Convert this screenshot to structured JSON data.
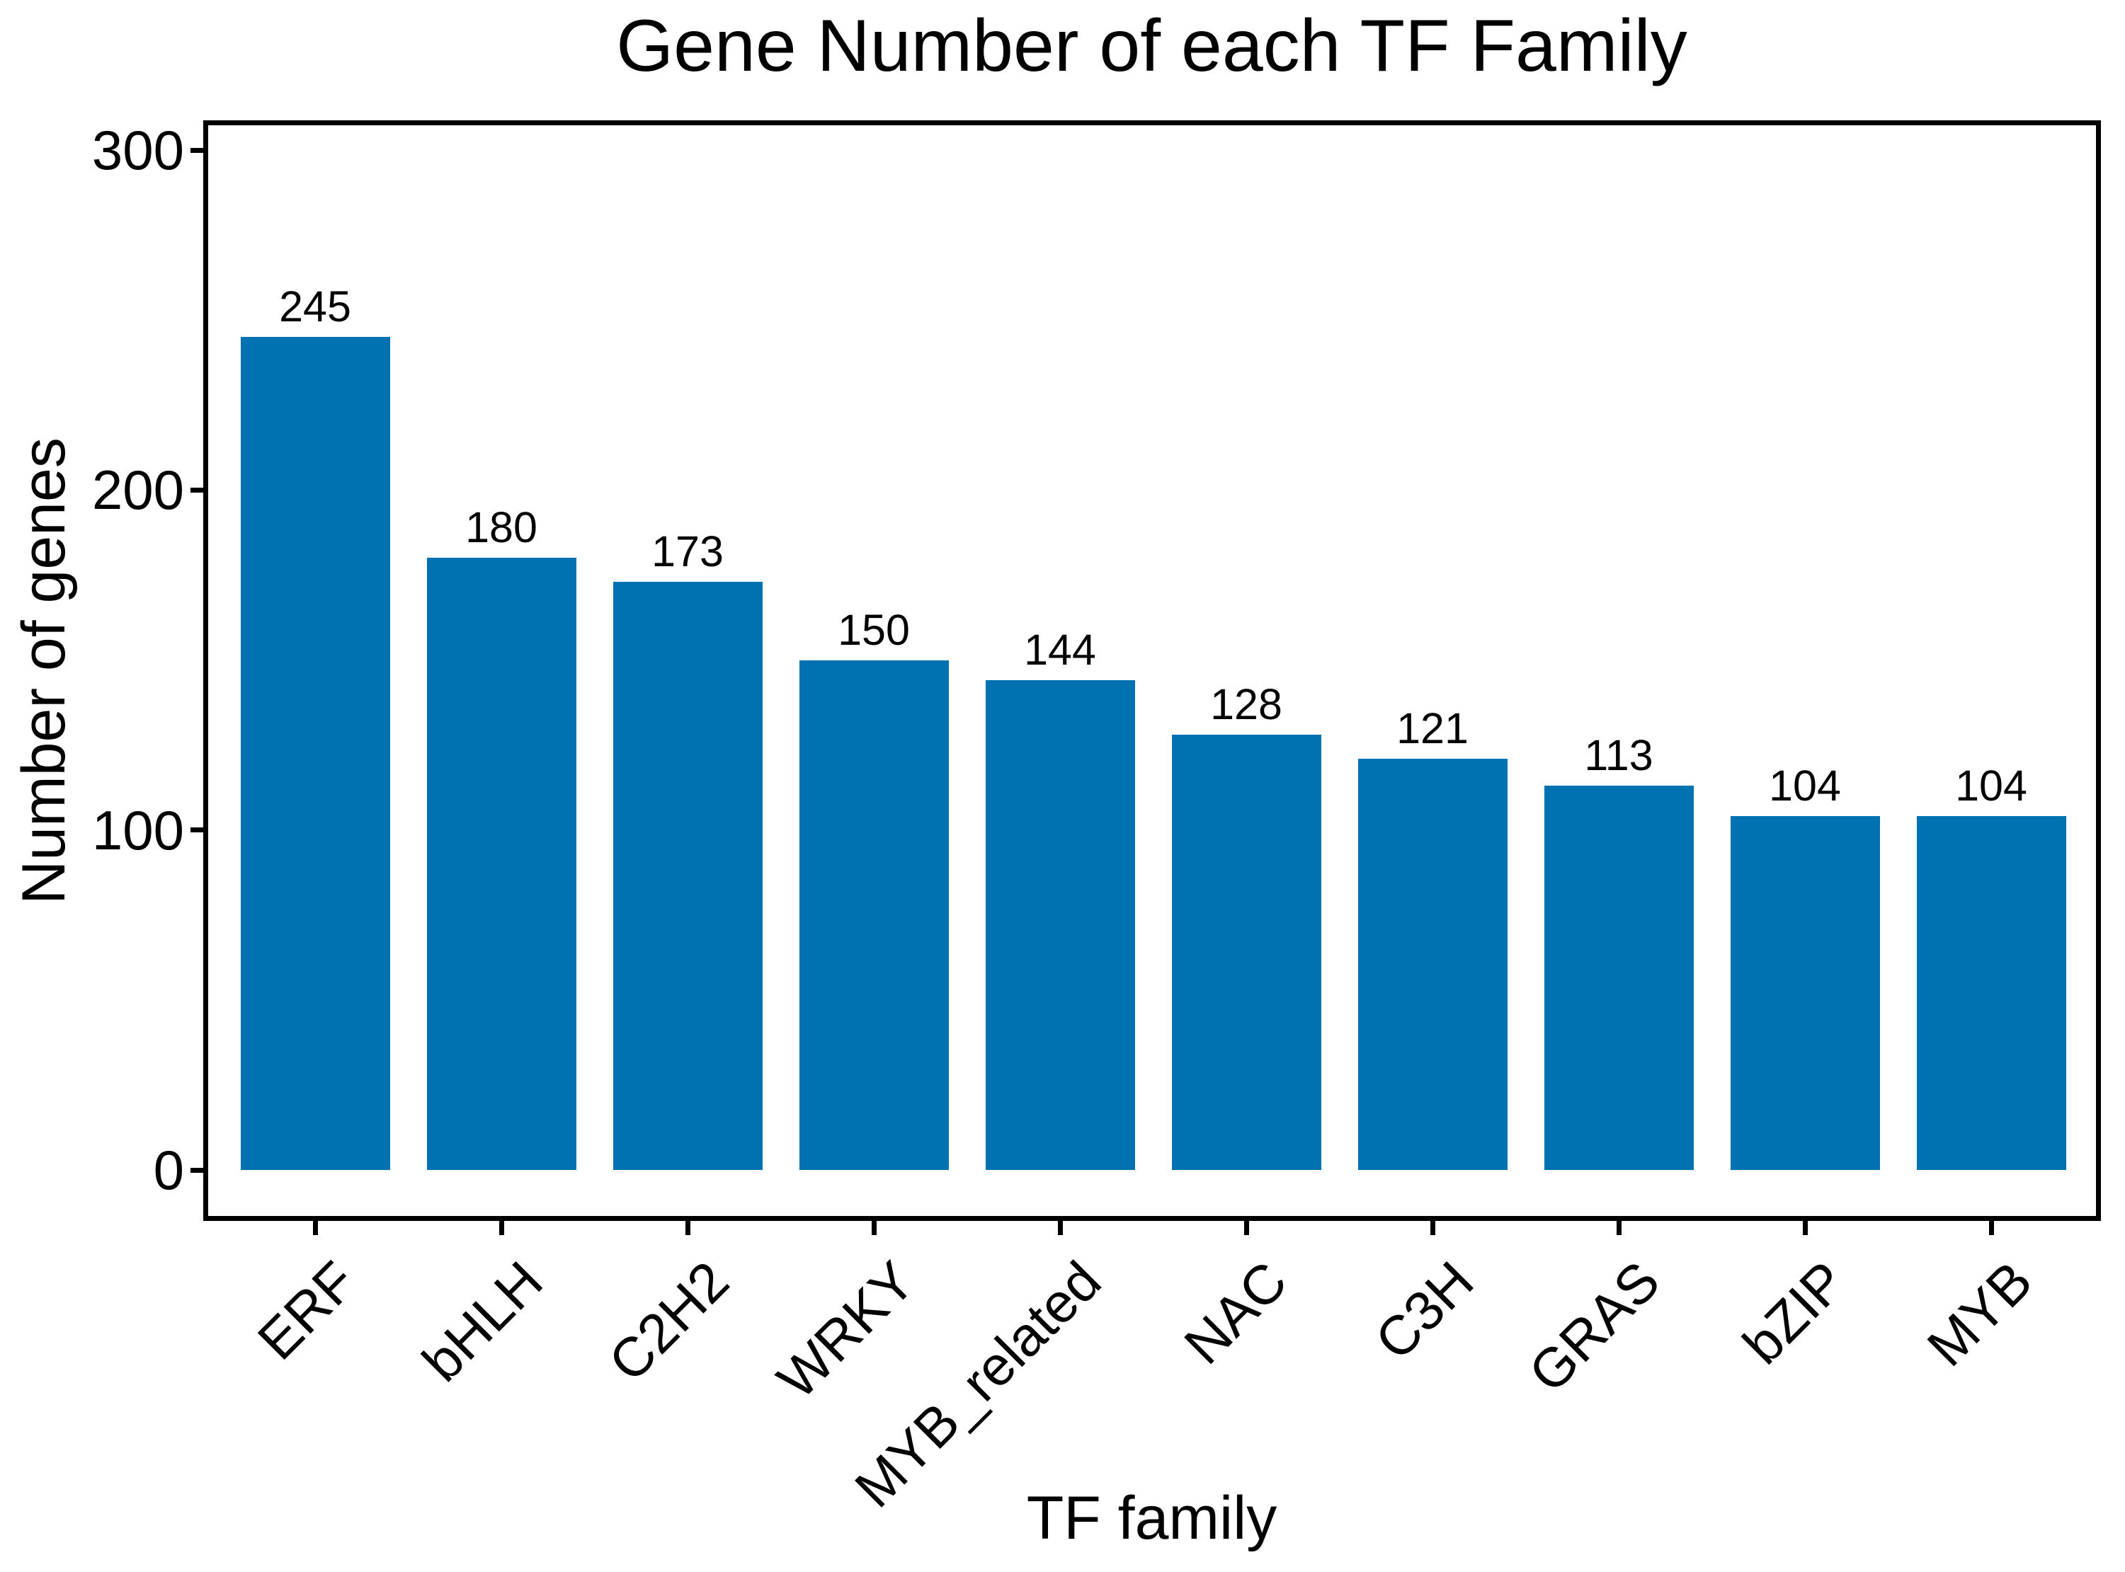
{
  "chart_data": {
    "type": "bar",
    "title": "Gene Number of each TF Family",
    "xlabel": "TF family",
    "ylabel": "Number of genes",
    "categories": [
      "ERF",
      "bHLH",
      "C2H2",
      "WRKY",
      "MYB_related",
      "NAC",
      "C3H",
      "GRAS",
      "bZIP",
      "MYB"
    ],
    "values": [
      245,
      180,
      173,
      150,
      144,
      128,
      121,
      113,
      104,
      104
    ],
    "value_labels": [
      "245",
      "180",
      "173",
      "150",
      "144",
      "128",
      "121",
      "113",
      "104",
      "104"
    ],
    "yticks": [
      0,
      100,
      200,
      300
    ],
    "ylim": [
      -14,
      308
    ],
    "bar_color": "#0072B2",
    "axis_color": "#000000",
    "background_color": "#ffffff",
    "grid": "off",
    "legend": "none",
    "bar_value_labels_shown": true,
    "x_tick_rotation_degrees": 45
  }
}
